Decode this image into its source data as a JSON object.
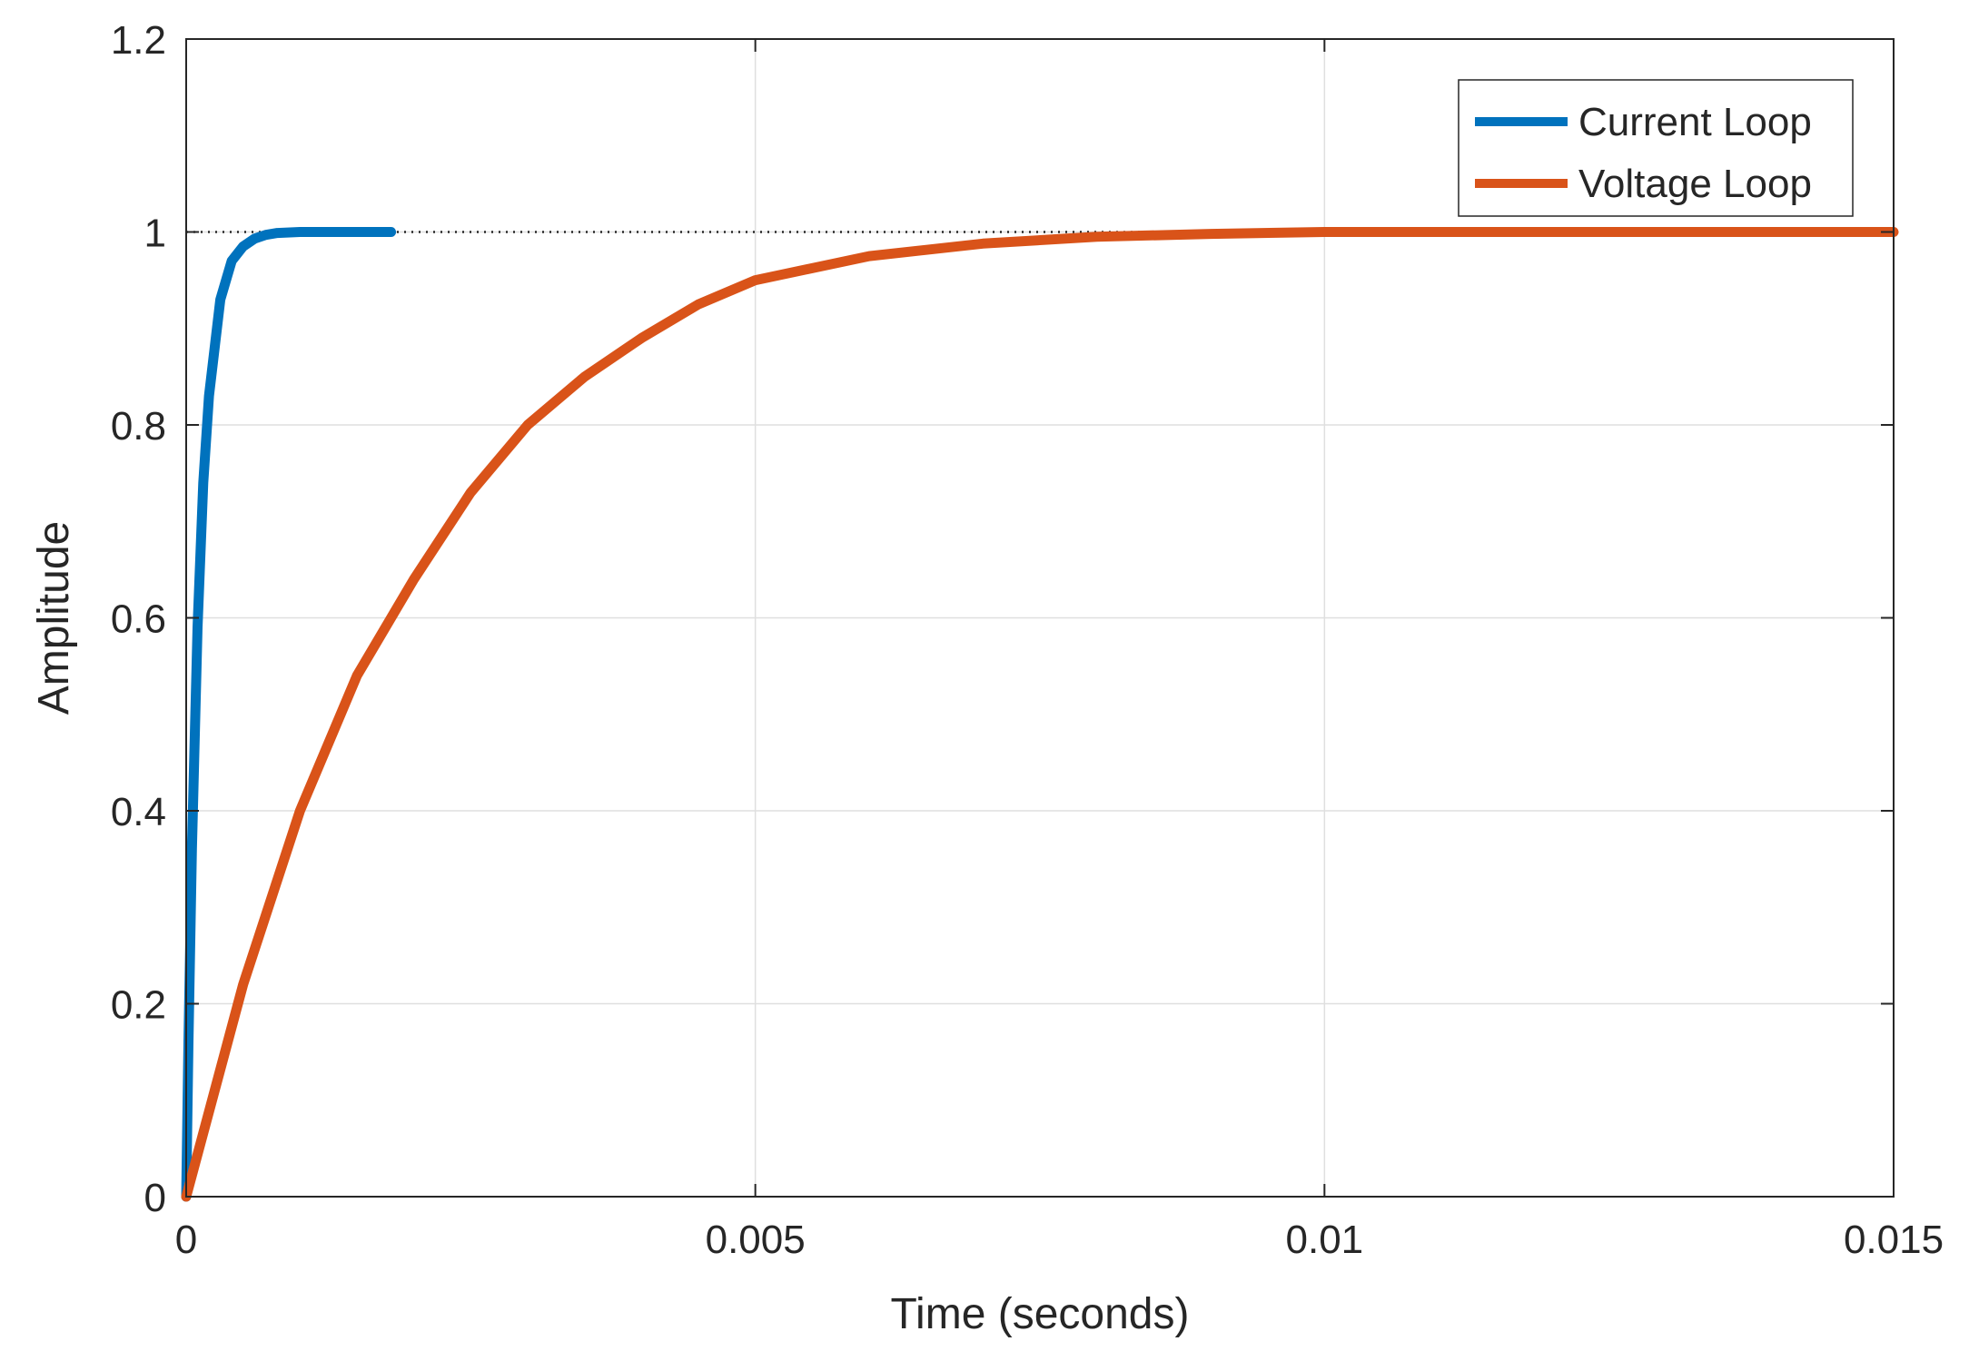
{
  "chart_data": {
    "type": "line",
    "title": "",
    "xlabel": "Time (seconds)",
    "ylabel": "Amplitude",
    "xlim": [
      0,
      0.015
    ],
    "ylim": [
      0,
      1.2
    ],
    "xticks": [
      0,
      0.005,
      0.01,
      0.015
    ],
    "xtick_labels": [
      "0",
      "0.005",
      "0.01",
      "0.015"
    ],
    "yticks": [
      0,
      0.2,
      0.4,
      0.6,
      0.8,
      1,
      1.2
    ],
    "ytick_labels": [
      "0",
      "0.2",
      "0.4",
      "0.6",
      "0.8",
      "1",
      "1.2"
    ],
    "grid": true,
    "legend_position": "top-right",
    "reference_line": {
      "y": 1,
      "style": "dotted",
      "color": "#262626"
    },
    "series": [
      {
        "name": "Current Loop",
        "color": "#0072BD",
        "x": [
          0,
          2e-05,
          5e-05,
          0.0001,
          0.00015,
          0.0002,
          0.0003,
          0.0004,
          0.0005,
          0.0006,
          0.0007,
          0.0008,
          0.001,
          0.0012,
          0.0015,
          0.0018
        ],
        "y": [
          0,
          0.16,
          0.36,
          0.59,
          0.74,
          0.83,
          0.93,
          0.97,
          0.985,
          0.993,
          0.997,
          0.999,
          1.0,
          1.0,
          1.0,
          1.0
        ]
      },
      {
        "name": "Voltage Loop",
        "color": "#D95319",
        "x": [
          0,
          0.0005,
          0.001,
          0.0015,
          0.002,
          0.0025,
          0.003,
          0.0035,
          0.004,
          0.0045,
          0.005,
          0.006,
          0.007,
          0.008,
          0.009,
          0.01,
          0.011,
          0.012,
          0.013,
          0.014,
          0.015
        ],
        "y": [
          0,
          0.22,
          0.4,
          0.54,
          0.64,
          0.73,
          0.8,
          0.85,
          0.89,
          0.925,
          0.95,
          0.975,
          0.988,
          0.995,
          0.998,
          1.0,
          1.0,
          1.0,
          1.0,
          1.0,
          1.0
        ]
      }
    ]
  }
}
